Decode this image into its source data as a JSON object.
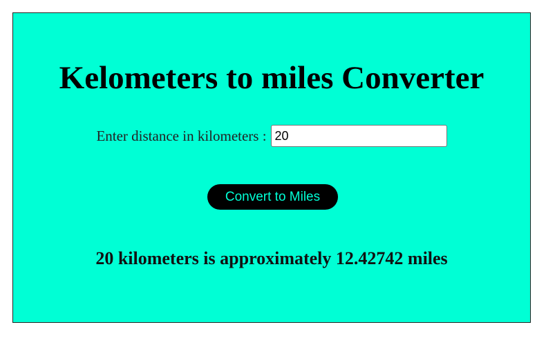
{
  "colors": {
    "background": "#00ffd5",
    "button_bg": "#000000",
    "button_text": "#00ffd5"
  },
  "header": {
    "title": "Kelometers to miles Converter"
  },
  "form": {
    "label": "Enter distance in kilometers :",
    "input_value": "20",
    "button_label": "Convert to Miles"
  },
  "result": {
    "text": "20 kilometers is approximately 12.42742 miles"
  }
}
